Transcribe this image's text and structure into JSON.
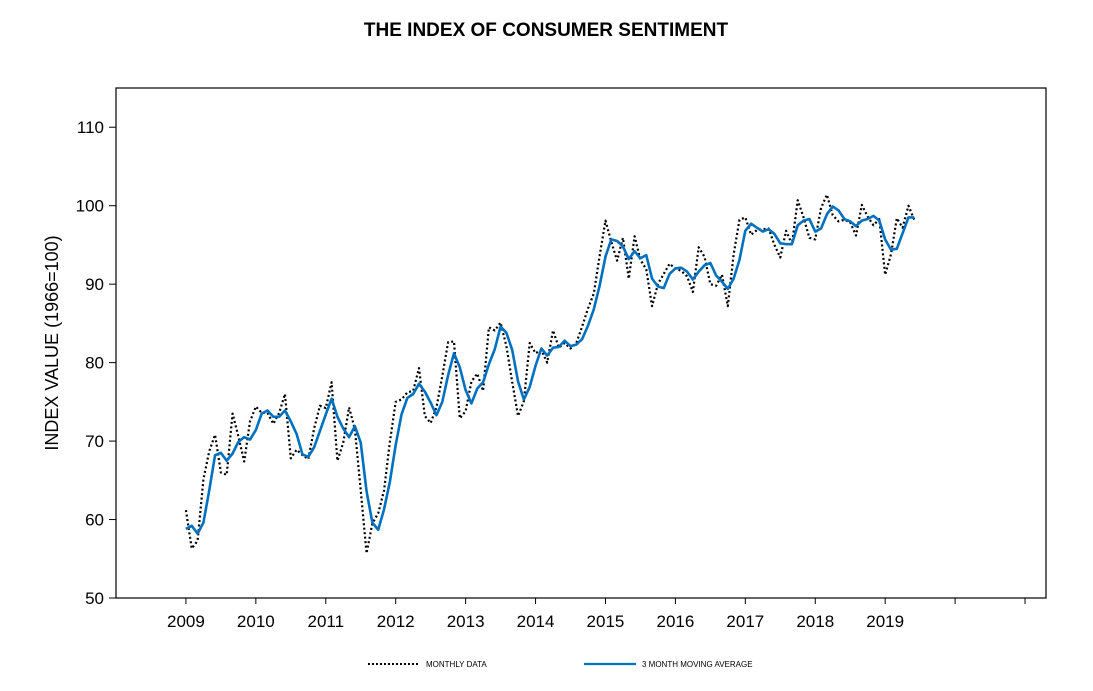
{
  "chart_data": {
    "type": "line",
    "title": "THE INDEX OF CONSUMER SENTIMENT",
    "xlabel": "",
    "ylabel": "INDEX VALUE (1966=100)",
    "ylim": [
      50,
      115
    ],
    "xlim": [
      2008.0,
      2021.3
    ],
    "yticks": [
      50,
      60,
      70,
      80,
      90,
      100,
      110
    ],
    "xticks": [
      2009,
      2010,
      2011,
      2012,
      2013,
      2014,
      2015,
      2016,
      2017,
      2018,
      2019
    ],
    "legend": "bottom",
    "grid": false,
    "colors": {
      "monthly": "#000000",
      "moving_average": "#0070c0"
    },
    "series": [
      {
        "name": "MONTHLY DATA",
        "style": "dotted",
        "start": 2009.0,
        "step": 0.08333,
        "values": [
          61.2,
          56.3,
          57.3,
          65.1,
          68.7,
          70.8,
          66.0,
          65.7,
          73.5,
          70.6,
          67.4,
          72.5,
          74.4,
          73.6,
          73.6,
          72.2,
          73.6,
          76.0,
          67.8,
          68.9,
          68.2,
          67.7,
          71.6,
          74.5,
          74.2,
          77.5,
          67.5,
          69.8,
          74.3,
          71.5,
          63.7,
          55.7,
          59.5,
          60.8,
          63.7,
          69.9,
          75.0,
          75.3,
          76.2,
          76.4,
          79.3,
          73.2,
          72.3,
          74.3,
          78.3,
          82.6,
          82.7,
          72.9,
          73.8,
          77.6,
          78.6,
          76.4,
          84.5,
          84.1,
          85.1,
          82.1,
          77.5,
          73.2,
          75.1,
          82.5,
          81.2,
          81.6,
          80.0,
          84.1,
          81.9,
          82.5,
          81.8,
          82.5,
          84.6,
          86.9,
          88.8,
          93.6,
          98.1,
          95.4,
          93.0,
          95.9,
          90.7,
          96.1,
          93.1,
          91.9,
          87.2,
          90.0,
          91.3,
          92.6,
          92.0,
          91.7,
          91.0,
          89.0,
          94.7,
          93.5,
          90.0,
          89.8,
          91.2,
          87.2,
          93.8,
          98.2,
          98.5,
          96.3,
          96.9,
          97.0,
          97.1,
          95.0,
          93.4,
          96.8,
          95.1,
          100.7,
          98.5,
          95.9,
          95.7,
          99.7,
          101.4,
          98.8,
          98.0,
          98.2,
          97.9,
          96.2,
          100.1,
          98.6,
          97.5,
          98.3,
          91.2,
          93.8,
          98.4,
          97.2,
          100.0,
          98.2
        ]
      },
      {
        "name": "3 MONTH MOVING AVERAGE",
        "style": "solid",
        "start": 2009.0,
        "step": 0.08333,
        "values": [
          58.8,
          59.2,
          58.2,
          59.6,
          63.7,
          68.2,
          68.5,
          67.5,
          68.4,
          69.9,
          70.5,
          70.2,
          71.4,
          73.5,
          73.9,
          73.1,
          73.1,
          73.9,
          72.5,
          70.9,
          68.3,
          68.0,
          69.2,
          71.3,
          73.4,
          75.4,
          73.1,
          71.6,
          70.5,
          71.9,
          69.8,
          63.6,
          59.6,
          58.7,
          61.3,
          64.8,
          69.5,
          73.4,
          75.5,
          76.0,
          77.3,
          76.3,
          74.9,
          73.3,
          75.0,
          78.4,
          81.2,
          79.4,
          76.5,
          74.8,
          76.7,
          77.5,
          79.8,
          81.7,
          84.6,
          83.8,
          81.6,
          77.6,
          75.3,
          76.9,
          79.6,
          81.8,
          80.9,
          81.9,
          82.0,
          82.8,
          82.1,
          82.3,
          83.0,
          84.7,
          86.8,
          89.8,
          93.5,
          95.7,
          95.5,
          94.8,
          93.2,
          94.2,
          93.3,
          93.7,
          90.7,
          89.7,
          89.5,
          91.3,
          92.0,
          92.1,
          91.6,
          90.6,
          91.6,
          92.4,
          92.7,
          91.1,
          90.3,
          89.4,
          90.7,
          93.1,
          96.8,
          97.7,
          97.2,
          96.7,
          97.0,
          96.4,
          95.2,
          95.1,
          95.1,
          97.5,
          98.1,
          98.3,
          96.7,
          97.1,
          98.9,
          99.9,
          99.4,
          98.3,
          98.0,
          97.4,
          98.1,
          98.3,
          98.7,
          98.1,
          95.7,
          94.4,
          94.5,
          96.5,
          98.5,
          98.5
        ]
      }
    ]
  }
}
